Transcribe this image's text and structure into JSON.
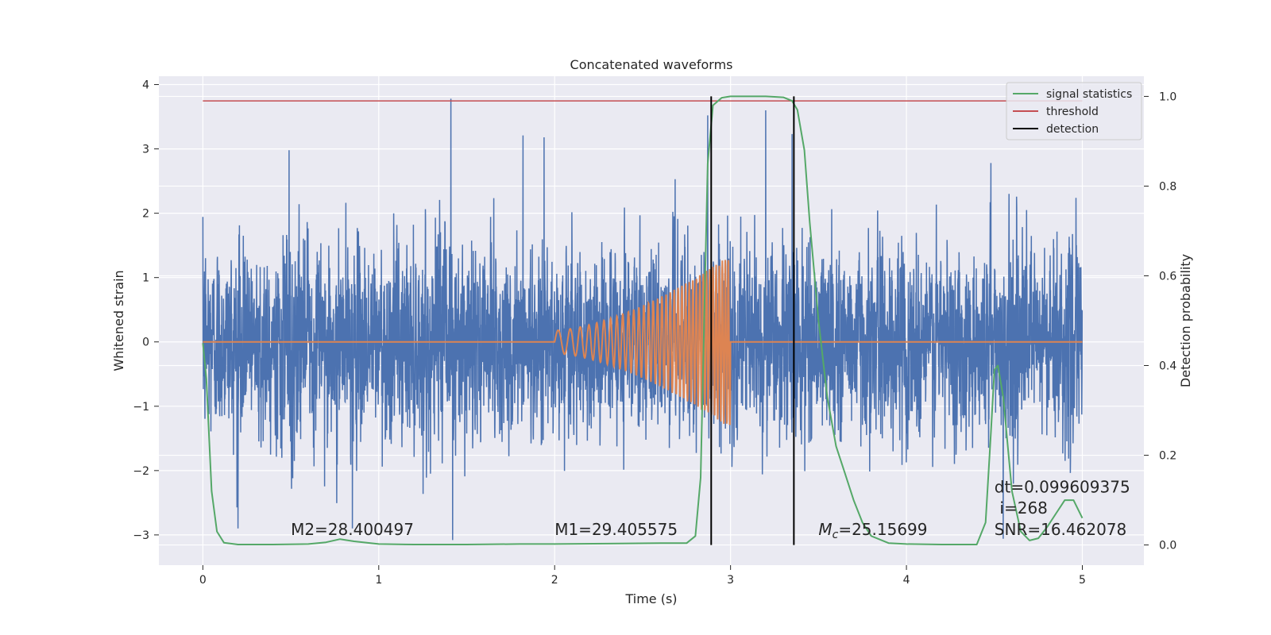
{
  "chart_data": {
    "type": "line",
    "title": "Concatenated waveforms",
    "xlabel": "Time (s)",
    "ylabel": "Whitened strain",
    "y2label": "Detection probability",
    "xlim": [
      -0.25,
      5.35
    ],
    "ylim": [
      -3.47,
      4.13
    ],
    "y2lim": [
      -0.045,
      1.045
    ],
    "xticks": [
      0,
      1,
      2,
      3,
      4,
      5
    ],
    "yticks": [
      -3,
      -2,
      -1,
      0,
      1,
      2,
      3,
      4
    ],
    "y2ticks": [
      0.0,
      0.2,
      0.4,
      0.6,
      0.8,
      1.0
    ],
    "y2tick_labels": [
      "0.0",
      "0.2",
      "0.4",
      "0.6",
      "0.8",
      "1.0"
    ],
    "grid": true,
    "legend_position": "top-right",
    "colors": {
      "background": "#eaeaf2",
      "strain": "#4c72b0",
      "template": "#dd8452",
      "signal_statistics": "#55a868",
      "threshold": "#c44e52",
      "detection": "#000000",
      "grid": "#ffffff"
    },
    "series": [
      {
        "name": "strain",
        "axis": "left",
        "x_range": [
          0,
          5
        ],
        "amplitude_envelope": 2.6,
        "notable_peaks": [
          {
            "x": 0.49,
            "y": 2.98
          },
          {
            "x": 1.41,
            "y": 3.78
          },
          {
            "x": 1.42,
            "y": -3.08
          },
          {
            "x": 1.82,
            "y": 3.21
          },
          {
            "x": 1.94,
            "y": 3.18
          },
          {
            "x": 2.87,
            "y": 3.52
          },
          {
            "x": 3.2,
            "y": 3.6
          },
          {
            "x": 3.35,
            "y": 3.23
          },
          {
            "x": 4.48,
            "y": 2.78
          },
          {
            "x": 0.2,
            "y": -2.9
          },
          {
            "x": 0.85,
            "y": -2.9
          },
          {
            "x": 4.55,
            "y": -3.06
          }
        ]
      },
      {
        "name": "template",
        "axis": "left",
        "x_range": [
          0,
          5
        ],
        "chirp_start": 2.0,
        "chirp_end": 3.0,
        "amplitude_start": 0.18,
        "amplitude_end": 1.35
      },
      {
        "name": "signal statistics",
        "axis": "right",
        "x": [
          0,
          0.02,
          0.05,
          0.08,
          0.12,
          0.2,
          0.4,
          0.6,
          0.7,
          0.78,
          0.86,
          1.0,
          1.2,
          1.5,
          1.8,
          2.0,
          2.3,
          2.6,
          2.75,
          2.8,
          2.83,
          2.85,
          2.87,
          2.9,
          2.95,
          3.0,
          3.2,
          3.3,
          3.35,
          3.38,
          3.42,
          3.45,
          3.5,
          3.55,
          3.6,
          3.65,
          3.7,
          3.75,
          3.8,
          3.9,
          4.0,
          4.2,
          4.4,
          4.45,
          4.48,
          4.5,
          4.52,
          4.55,
          4.6,
          4.65,
          4.7,
          4.75,
          4.8,
          4.85,
          4.9,
          4.95,
          5.0
        ],
        "y": [
          0.45,
          0.37,
          0.12,
          0.03,
          0.005,
          0.001,
          0.001,
          0.002,
          0.006,
          0.013,
          0.008,
          0.002,
          0.001,
          0.001,
          0.002,
          0.002,
          0.003,
          0.004,
          0.004,
          0.02,
          0.15,
          0.5,
          0.85,
          0.98,
          0.997,
          1.0,
          1.0,
          0.998,
          0.99,
          0.97,
          0.88,
          0.72,
          0.5,
          0.33,
          0.22,
          0.16,
          0.1,
          0.05,
          0.02,
          0.004,
          0.002,
          0.001,
          0.001,
          0.05,
          0.25,
          0.39,
          0.4,
          0.33,
          0.12,
          0.03,
          0.01,
          0.015,
          0.04,
          0.07,
          0.1,
          0.1,
          0.06
        ]
      },
      {
        "name": "threshold",
        "axis": "right",
        "x": [
          0,
          5
        ],
        "y": [
          0.99,
          0.99
        ]
      },
      {
        "name": "detection",
        "axis": "right",
        "x": [
          2.89,
          3.36
        ],
        "y_range": [
          0,
          1
        ]
      }
    ],
    "legend": [
      "signal statistics",
      "threshold",
      "detection"
    ],
    "annotations": [
      {
        "text": "M2=28.400497",
        "x": 0.5,
        "y": -3.0
      },
      {
        "text": "M1=29.405575",
        "x": 2.0,
        "y": -3.0
      },
      {
        "text_symbol": "M",
        "text_sub": "c",
        "text_value": "=25.15699",
        "x": 3.5,
        "y": -3.0
      },
      {
        "text": "dt=0.099609375",
        "x": 4.5,
        "y": -2.34
      },
      {
        "text": "i=268",
        "x": 4.53,
        "y": -2.67
      },
      {
        "text": "SNR=16.462078",
        "x": 4.5,
        "y": -3.0
      }
    ]
  }
}
